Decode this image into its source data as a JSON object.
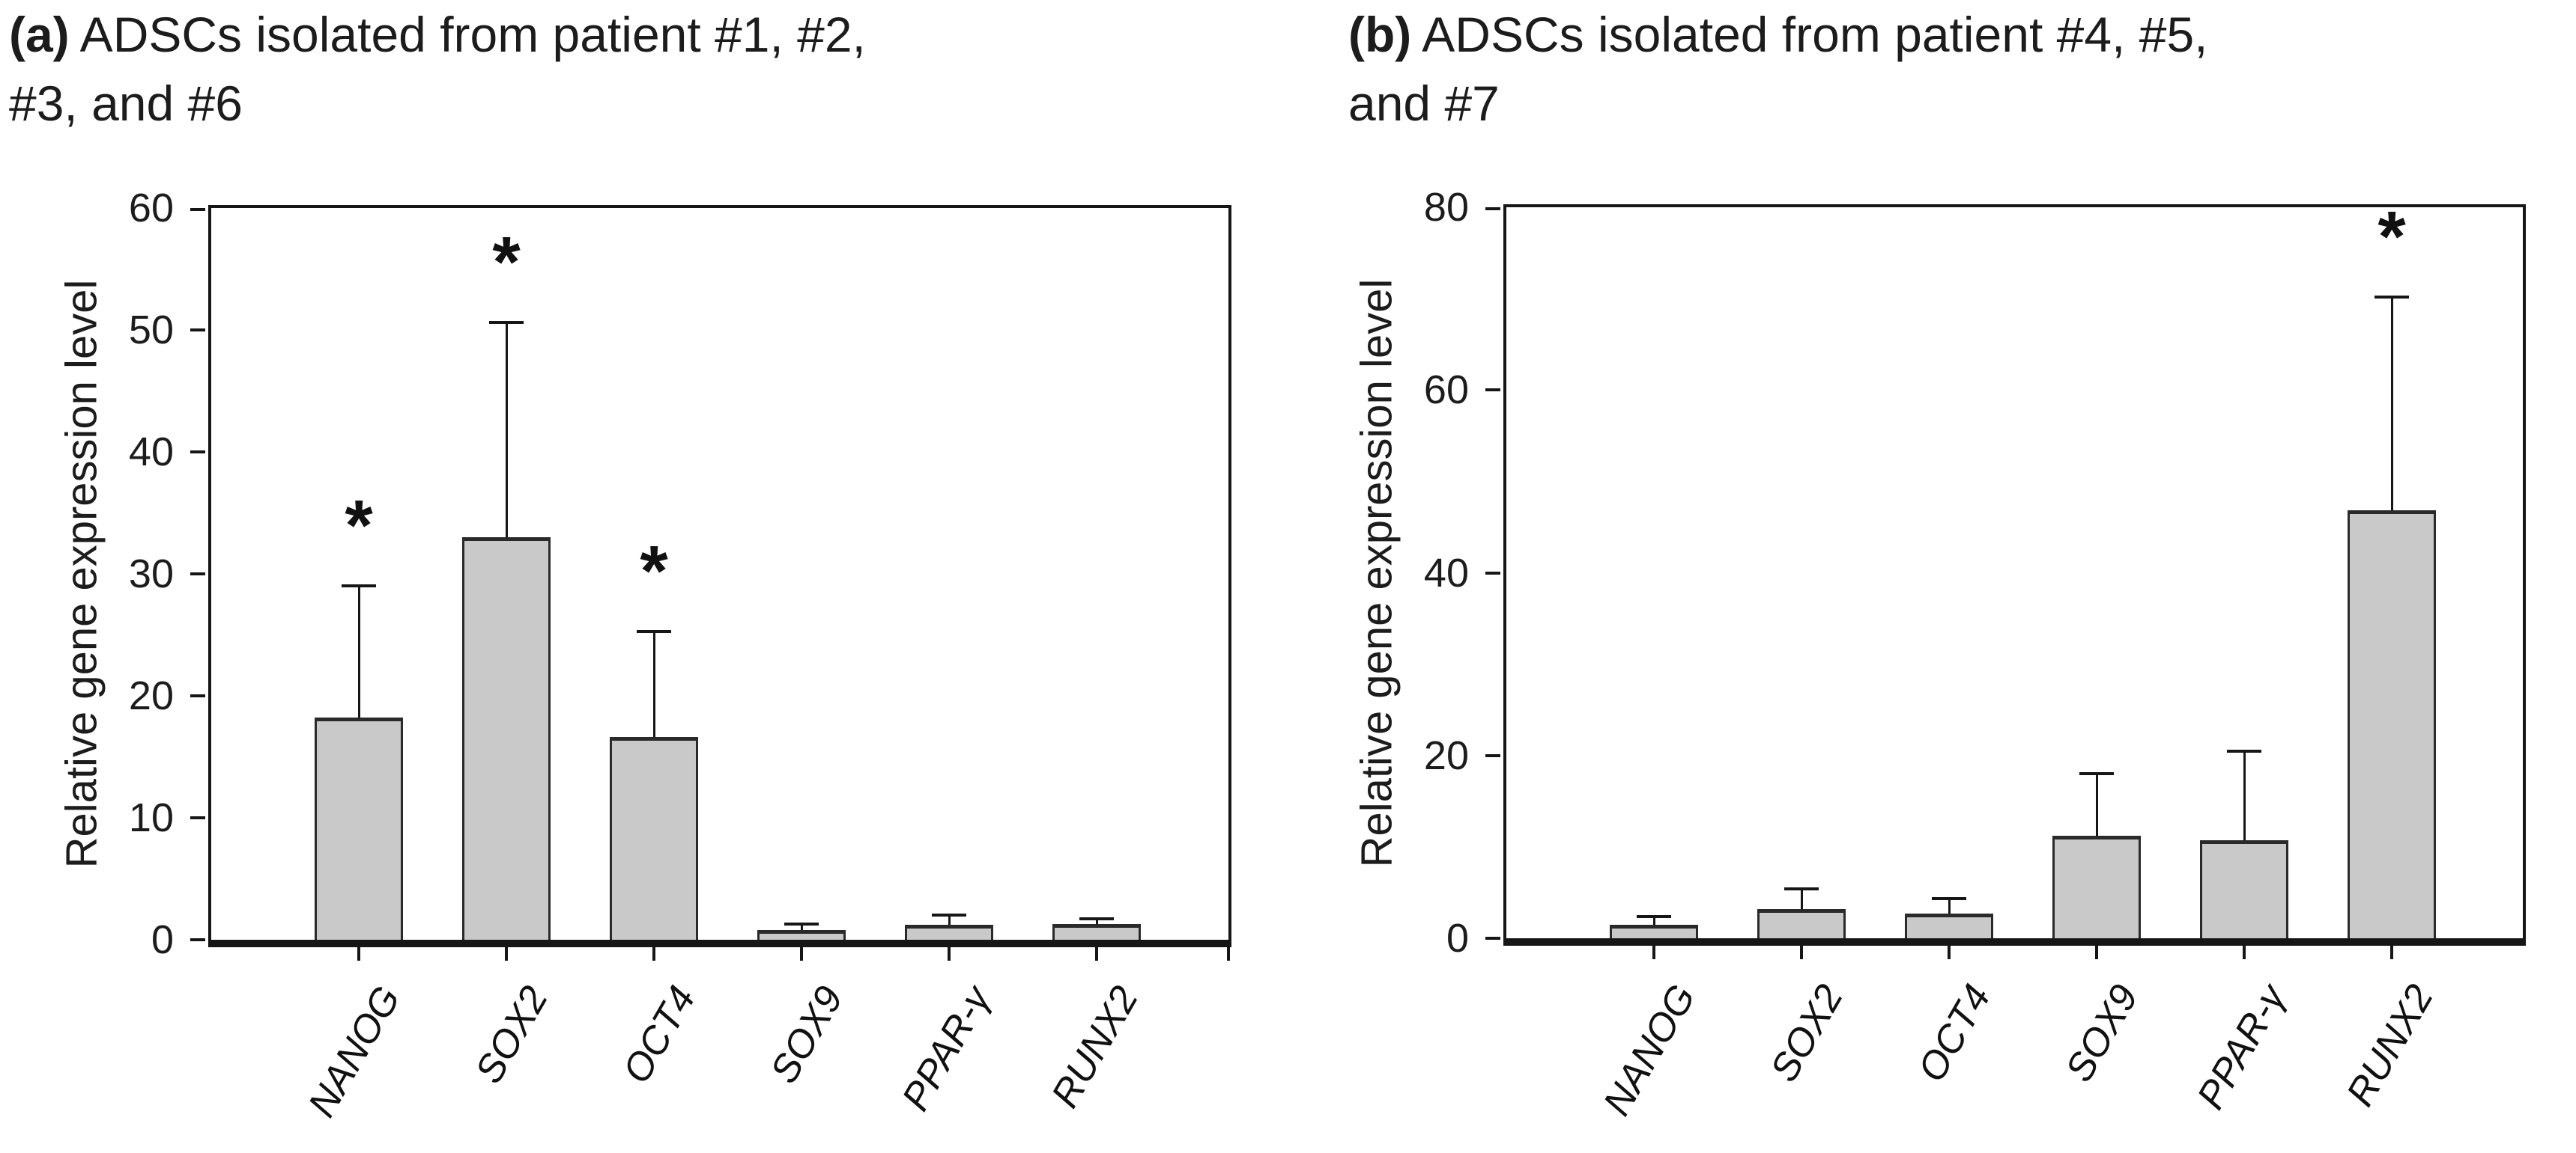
{
  "figure": {
    "significance_marker": "*",
    "bar_fill": "#c9c9c9",
    "bar_border": "#2a2a2a",
    "axis_color": "#161616"
  },
  "chart_data": [
    {
      "type": "bar",
      "panel_label": "(a)",
      "title": "ADSCs isolated from patient #1, #2, #3, and #6",
      "title_lines": [
        "ADSCs isolated from patient #1, #2,",
        "#3, and #6"
      ],
      "xlabel": "",
      "ylabel": "Relative gene expression level",
      "ylim": [
        0,
        60
      ],
      "yticks": [
        0,
        10,
        20,
        30,
        40,
        50,
        60
      ],
      "grid": false,
      "legend": null,
      "categories": [
        "NANOG",
        "SOX2",
        "OCT4",
        "SOX9",
        "PPAR-γ",
        "RUNX2"
      ],
      "values": [
        18.2,
        33.0,
        16.6,
        0.8,
        1.2,
        1.3
      ],
      "upper_errors": [
        10.8,
        17.6,
        8.7,
        0.5,
        0.8,
        0.4
      ],
      "significance": [
        "*",
        "*",
        "*",
        "",
        "",
        ""
      ]
    },
    {
      "type": "bar",
      "panel_label": "(b)",
      "title": "ADSCs isolated from patient #4, #5, and #7",
      "title_lines": [
        "ADSCs isolated from patient #4, #5,",
        "and #7"
      ],
      "xlabel": "",
      "ylabel": "Relative gene expression level",
      "ylim": [
        0,
        80
      ],
      "yticks": [
        0,
        20,
        40,
        60,
        80
      ],
      "grid": false,
      "legend": null,
      "categories": [
        "NANOG",
        "SOX2",
        "OCT4",
        "SOX9",
        "PPAR-γ",
        "RUNX2"
      ],
      "values": [
        1.5,
        3.2,
        2.7,
        11.2,
        10.7,
        46.8
      ],
      "upper_errors": [
        0.9,
        2.2,
        1.6,
        6.8,
        9.8,
        23.4
      ],
      "significance": [
        "",
        "",
        "",
        "",
        "",
        "*"
      ]
    }
  ]
}
